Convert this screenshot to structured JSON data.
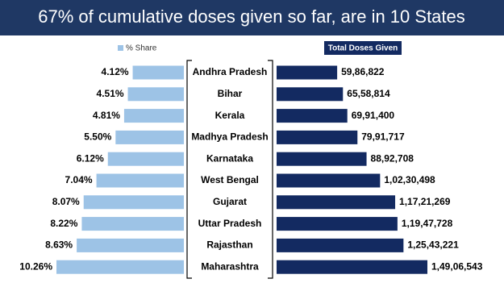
{
  "chart_data": {
    "type": "butterfly-bar",
    "title": "67% of cumulative doses given so far, are in 10 States",
    "categories": [
      "Andhra Pradesh",
      "Bihar",
      "Kerala",
      "Madhya Pradesh",
      "Karnataka",
      "West Bengal",
      "Gujarat",
      "Uttar Pradesh",
      "Rajasthan",
      "Maharashtra"
    ],
    "series": [
      {
        "name": "% Share",
        "color": "#9dc3e6",
        "values": [
          4.12,
          4.51,
          4.81,
          5.5,
          6.12,
          7.04,
          8.07,
          8.22,
          8.63,
          10.26
        ],
        "value_labels": [
          "4.12%",
          "4.51%",
          "4.81%",
          "5.50%",
          "6.12%",
          "7.04%",
          "8.07%",
          "8.22%",
          "8.63%",
          "10.26%"
        ]
      },
      {
        "name": "Total Doses Given",
        "color": "#132a61",
        "values": [
          5986822,
          6558814,
          6991400,
          7991717,
          8892708,
          10230498,
          11721269,
          11947728,
          12543221,
          14906543
        ],
        "value_labels": [
          "59,86,822",
          "65,58,814",
          "69,91,400",
          "79,91,717",
          "88,92,708",
          "1,02,30,498",
          "1,17,21,269",
          "1,19,47,728",
          "1,25,43,221",
          "1,49,06,543"
        ]
      }
    ]
  }
}
